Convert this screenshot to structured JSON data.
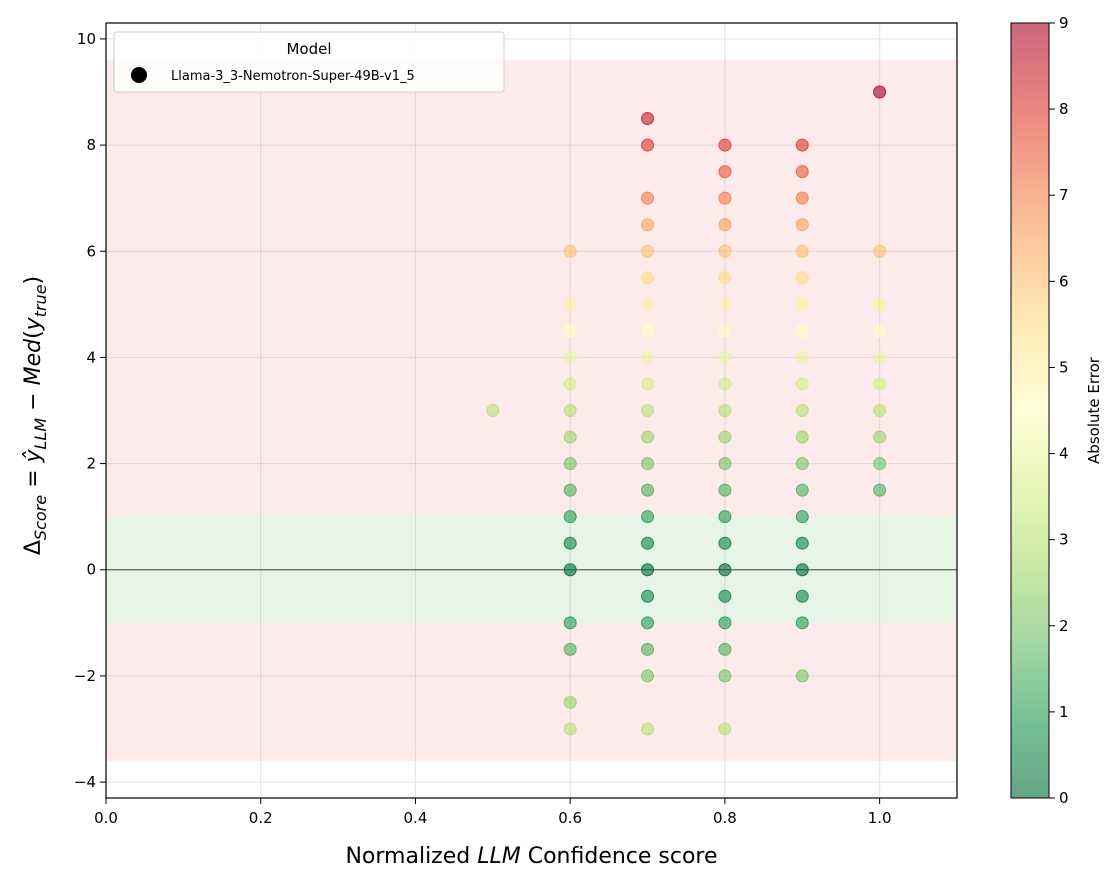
{
  "chart_data": {
    "type": "scatter",
    "title": "",
    "xlabel_parts": [
      "Normalized ",
      "LLM",
      " Confidence score"
    ],
    "ylabel_parts": [
      "Δ",
      "Score",
      " = ",
      "ŷ",
      "LLM",
      " − ",
      "Med",
      "(",
      "y",
      "true",
      ")"
    ],
    "xlim": [
      0.0,
      1.1
    ],
    "ylim": [
      -4.3,
      10.3
    ],
    "xticks": [
      0.0,
      0.2,
      0.4,
      0.6,
      0.8,
      1.0
    ],
    "xtick_labels": [
      "0.0",
      "0.2",
      "0.4",
      "0.6",
      "0.8",
      "1.0"
    ],
    "yticks": [
      -4,
      -2,
      0,
      2,
      4,
      6,
      8,
      10
    ],
    "ytick_labels": [
      "−4",
      "−2",
      "0",
      "2",
      "4",
      "6",
      "8",
      "10"
    ],
    "grid": true,
    "bands": [
      {
        "name": "error-band-upper",
        "y0": 1,
        "y1": 9.6,
        "color": "#fdeaea"
      },
      {
        "name": "tolerance-band",
        "y0": -1,
        "y1": 1,
        "color": "#e6f5e6"
      },
      {
        "name": "error-band-lower",
        "y0": -3.6,
        "y1": -1,
        "color": "#fdeaea"
      }
    ],
    "reference_line": {
      "y": 0,
      "color": "#5a6b5a"
    },
    "legend": {
      "title": "Model",
      "position": "upper-left",
      "entries": [
        {
          "label": "Llama-3_3-Nemotron-Super-49B-v1_5",
          "marker_color": "#000000"
        }
      ]
    },
    "colorbar": {
      "label": "Absolute Error",
      "min": 0,
      "max": 9,
      "ticks": [
        0,
        1,
        2,
        3,
        4,
        5,
        6,
        7,
        8,
        9
      ],
      "colormap": "RdYlGn_r",
      "alpha": 0.6
    },
    "series": [
      {
        "name": "Llama-3_3-Nemotron-Super-49B-v1_5",
        "x": 0.5,
        "y": [
          3
        ]
      },
      {
        "name": "Llama-3_3-Nemotron-Super-49B-v1_5",
        "x": 0.6,
        "y": [
          6,
          5,
          4.5,
          4,
          3.5,
          3,
          2.5,
          2,
          1.5,
          1,
          0.5,
          0,
          -1,
          -1.5,
          -2.5,
          -3
        ]
      },
      {
        "name": "Llama-3_3-Nemotron-Super-49B-v1_5",
        "x": 0.7,
        "y": [
          8.5,
          8,
          7,
          6.5,
          6,
          5.5,
          5,
          4.5,
          4,
          3.5,
          3,
          2.5,
          2,
          1.5,
          1,
          0.5,
          0,
          -0.5,
          -1,
          -1.5,
          -2,
          -3
        ]
      },
      {
        "name": "Llama-3_3-Nemotron-Super-49B-v1_5",
        "x": 0.8,
        "y": [
          8,
          7.5,
          7,
          6.5,
          6,
          5.5,
          5,
          4.5,
          4,
          3.5,
          3,
          2.5,
          2,
          1.5,
          1,
          0.5,
          0,
          -0.5,
          -1,
          -1.5,
          -2,
          -3
        ]
      },
      {
        "name": "Llama-3_3-Nemotron-Super-49B-v1_5",
        "x": 0.9,
        "y": [
          8,
          7.5,
          7,
          6.5,
          6,
          5.5,
          5,
          4.5,
          4,
          3.5,
          3,
          2.5,
          2,
          1.5,
          1,
          0.5,
          0,
          -0.5,
          -1,
          -2
        ]
      },
      {
        "name": "Llama-3_3-Nemotron-Super-49B-v1_5",
        "x": 1.0,
        "y": [
          9,
          6,
          5,
          4.5,
          4,
          3.5,
          3,
          2.5,
          2,
          1.5
        ]
      }
    ]
  }
}
